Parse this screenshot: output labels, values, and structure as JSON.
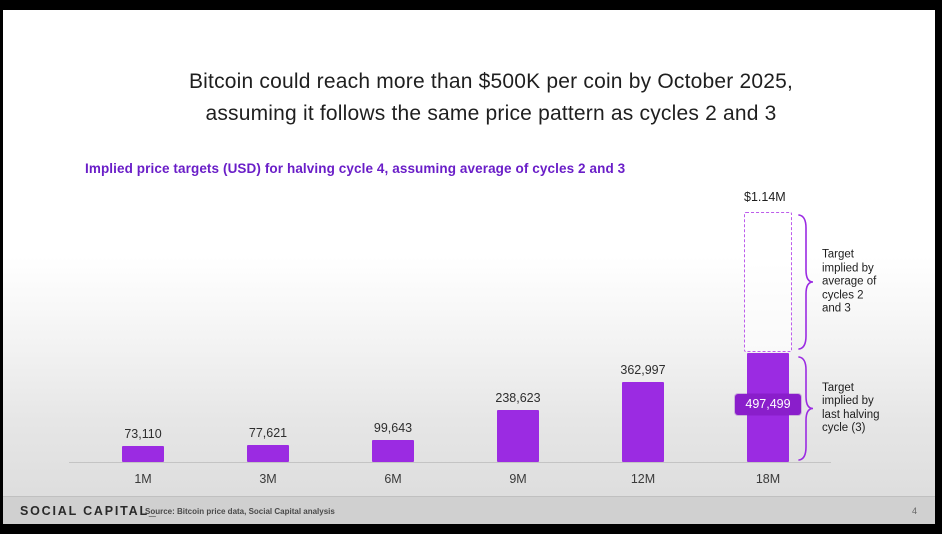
{
  "slide": {
    "title_line1": "Bitcoin could reach more than $500K per coin by October 2025,",
    "title_line2": "assuming it follows the same price pattern as cycles 2 and 3"
  },
  "chart_data": {
    "type": "bar",
    "title": "Implied price targets (USD) for halving cycle 4, assuming average of cycles 2 and 3",
    "categories": [
      "1M",
      "3M",
      "6M",
      "9M",
      "12M",
      "18M"
    ],
    "values": [
      73110,
      77621,
      99643,
      238623,
      362997,
      497499
    ],
    "value_labels": [
      "73,110",
      "77,621",
      "99,643",
      "238,623",
      "362,997",
      "497,499"
    ],
    "label_placement": [
      "above",
      "above",
      "above",
      "above",
      "above",
      "inside"
    ],
    "projected_bar": {
      "category": "18M",
      "value": 1140000,
      "label": "$1.14M",
      "style": "dashed-outline"
    },
    "ylim": [
      0,
      1140000
    ],
    "grid": false,
    "legend": false,
    "annotations": [
      {
        "id": "average-of-cycles",
        "text": "Target\nimplied by\naverage of\ncycles 2\nand 3",
        "applies_to": "dashed projected segment of 18M bar"
      },
      {
        "id": "last-halving-cycle",
        "text": "Target\nimplied by\nlast halving\ncycle (3)",
        "applies_to": "solid segment of 18M bar"
      }
    ]
  },
  "colors": {
    "bar_purple": "#9B2BE2",
    "inside_label_box_purple": "#8A1ECB",
    "dashed_outline_purple": "#BD5CEC",
    "brace_purple": "#9B2BE2",
    "subtitle_purple": "#6A1EC8",
    "title_text": "#1F1F1F",
    "axis_line": "#C4C4C4"
  },
  "footer": {
    "brand": "SOCIAL CAPITAL_",
    "source": "Source: Bitcoin price data, Social Capital analysis",
    "page_number": "4"
  }
}
